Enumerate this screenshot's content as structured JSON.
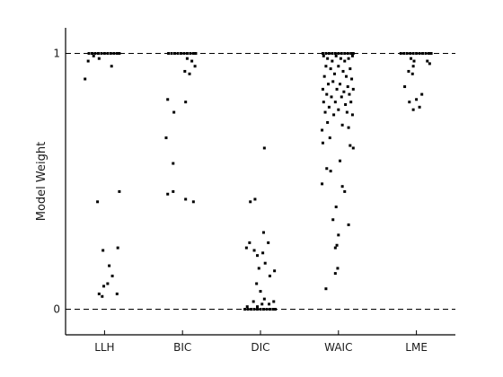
{
  "chart_data": {
    "type": "scatter",
    "title": "",
    "xlabel": "",
    "ylabel": "Model Weight",
    "categories": [
      "LLH",
      "BIC",
      "DIC",
      "WAIC",
      "LME"
    ],
    "xlim": [
      0.5,
      5.5
    ],
    "ylim": [
      -0.1,
      1.1
    ],
    "y_ticks": [
      0,
      1
    ],
    "reference_lines": [
      0,
      1
    ],
    "reference_line_style": "dashed",
    "marker_color": "#000000",
    "grid": false,
    "series": [
      {
        "category": "LLH",
        "points": [
          [
            0.8,
            1.0
          ],
          [
            0.84,
            1.0
          ],
          [
            0.88,
            1.0
          ],
          [
            0.92,
            1.0
          ],
          [
            0.96,
            1.0
          ],
          [
            1.0,
            1.0
          ],
          [
            1.04,
            1.0
          ],
          [
            1.08,
            1.0
          ],
          [
            1.12,
            1.0
          ],
          [
            1.16,
            1.0
          ],
          [
            1.19,
            1.0
          ],
          [
            0.86,
            0.99
          ],
          [
            0.93,
            0.98
          ],
          [
            0.79,
            0.97
          ],
          [
            1.09,
            0.95
          ],
          [
            0.75,
            0.9
          ],
          [
            1.19,
            0.46
          ],
          [
            0.91,
            0.42
          ],
          [
            0.98,
            0.23
          ],
          [
            1.17,
            0.24
          ],
          [
            1.06,
            0.17
          ],
          [
            1.1,
            0.13
          ],
          [
            1.04,
            0.1
          ],
          [
            0.99,
            0.09
          ],
          [
            0.93,
            0.06
          ],
          [
            0.97,
            0.05
          ],
          [
            1.16,
            0.06
          ]
        ]
      },
      {
        "category": "BIC",
        "points": [
          [
            1.82,
            1.0
          ],
          [
            1.86,
            1.0
          ],
          [
            1.9,
            1.0
          ],
          [
            1.94,
            1.0
          ],
          [
            1.98,
            1.0
          ],
          [
            2.02,
            1.0
          ],
          [
            2.06,
            1.0
          ],
          [
            2.1,
            1.0
          ],
          [
            2.14,
            1.0
          ],
          [
            2.17,
            1.0
          ],
          [
            2.06,
            0.98
          ],
          [
            2.12,
            0.97
          ],
          [
            2.16,
            0.95
          ],
          [
            2.03,
            0.93
          ],
          [
            2.09,
            0.92
          ],
          [
            1.81,
            0.82
          ],
          [
            2.04,
            0.81
          ],
          [
            1.89,
            0.77
          ],
          [
            1.79,
            0.67
          ],
          [
            1.88,
            0.57
          ],
          [
            1.81,
            0.45
          ],
          [
            1.88,
            0.46
          ],
          [
            2.04,
            0.43
          ],
          [
            2.14,
            0.42
          ]
        ]
      },
      {
        "category": "DIC",
        "points": [
          [
            2.8,
            0.0
          ],
          [
            2.84,
            0.0
          ],
          [
            2.88,
            0.0
          ],
          [
            2.92,
            0.0
          ],
          [
            2.96,
            0.0
          ],
          [
            3.0,
            0.0
          ],
          [
            3.04,
            0.0
          ],
          [
            3.08,
            0.0
          ],
          [
            3.12,
            0.0
          ],
          [
            3.16,
            0.0
          ],
          [
            3.19,
            0.0
          ],
          [
            2.83,
            0.01
          ],
          [
            2.96,
            0.01
          ],
          [
            3.02,
            0.02
          ],
          [
            3.11,
            0.02
          ],
          [
            3.17,
            0.03
          ],
          [
            3.05,
            0.04
          ],
          [
            2.91,
            0.03
          ],
          [
            3.0,
            0.07
          ],
          [
            2.95,
            0.1
          ],
          [
            3.12,
            0.13
          ],
          [
            2.98,
            0.16
          ],
          [
            3.18,
            0.15
          ],
          [
            3.06,
            0.18
          ],
          [
            2.96,
            0.21
          ],
          [
            3.03,
            0.22
          ],
          [
            2.92,
            0.23
          ],
          [
            3.1,
            0.26
          ],
          [
            2.82,
            0.24
          ],
          [
            2.86,
            0.26
          ],
          [
            3.04,
            0.3
          ],
          [
            2.87,
            0.42
          ],
          [
            2.93,
            0.43
          ],
          [
            3.05,
            0.63
          ]
        ]
      },
      {
        "category": "WAIC",
        "points": [
          [
            3.8,
            1.0
          ],
          [
            3.84,
            1.0
          ],
          [
            3.88,
            1.0
          ],
          [
            3.92,
            1.0
          ],
          [
            3.96,
            1.0
          ],
          [
            4.0,
            1.0
          ],
          [
            4.04,
            1.0
          ],
          [
            4.08,
            1.0
          ],
          [
            4.12,
            1.0
          ],
          [
            4.16,
            1.0
          ],
          [
            4.19,
            1.0
          ],
          [
            3.81,
            0.99
          ],
          [
            3.86,
            0.98
          ],
          [
            3.92,
            0.97
          ],
          [
            3.97,
            0.99
          ],
          [
            4.03,
            0.98
          ],
          [
            4.08,
            0.97
          ],
          [
            4.13,
            0.98
          ],
          [
            4.18,
            0.99
          ],
          [
            3.84,
            0.95
          ],
          [
            3.9,
            0.94
          ],
          [
            4.0,
            0.95
          ],
          [
            4.06,
            0.93
          ],
          [
            4.15,
            0.94
          ],
          [
            3.82,
            0.91
          ],
          [
            3.95,
            0.92
          ],
          [
            4.1,
            0.91
          ],
          [
            4.17,
            0.9
          ],
          [
            3.87,
            0.88
          ],
          [
            3.93,
            0.89
          ],
          [
            4.02,
            0.88
          ],
          [
            4.12,
            0.87
          ],
          [
            3.8,
            0.86
          ],
          [
            3.98,
            0.86
          ],
          [
            4.07,
            0.85
          ],
          [
            4.19,
            0.86
          ],
          [
            3.85,
            0.84
          ],
          [
            3.91,
            0.83
          ],
          [
            4.04,
            0.83
          ],
          [
            4.14,
            0.84
          ],
          [
            3.81,
            0.81
          ],
          [
            3.96,
            0.81
          ],
          [
            4.09,
            0.8
          ],
          [
            4.16,
            0.81
          ],
          [
            3.88,
            0.79
          ],
          [
            4.0,
            0.78
          ],
          [
            3.83,
            0.77
          ],
          [
            3.94,
            0.76
          ],
          [
            4.11,
            0.77
          ],
          [
            4.18,
            0.76
          ],
          [
            3.86,
            0.73
          ],
          [
            4.05,
            0.72
          ],
          [
            4.13,
            0.71
          ],
          [
            3.79,
            0.7
          ],
          [
            3.89,
            0.67
          ],
          [
            3.8,
            0.65
          ],
          [
            4.15,
            0.64
          ],
          [
            4.19,
            0.63
          ],
          [
            4.02,
            0.58
          ],
          [
            3.85,
            0.55
          ],
          [
            3.9,
            0.54
          ],
          [
            3.79,
            0.49
          ],
          [
            4.05,
            0.48
          ],
          [
            4.08,
            0.46
          ],
          [
            3.97,
            0.4
          ],
          [
            3.93,
            0.35
          ],
          [
            4.13,
            0.33
          ],
          [
            4.0,
            0.29
          ],
          [
            3.98,
            0.25
          ],
          [
            3.96,
            0.24
          ],
          [
            3.99,
            0.16
          ],
          [
            3.96,
            0.14
          ],
          [
            3.84,
            0.08
          ]
        ]
      },
      {
        "category": "LME",
        "points": [
          [
            4.8,
            1.0
          ],
          [
            4.84,
            1.0
          ],
          [
            4.88,
            1.0
          ],
          [
            4.92,
            1.0
          ],
          [
            4.96,
            1.0
          ],
          [
            5.0,
            1.0
          ],
          [
            5.04,
            1.0
          ],
          [
            5.08,
            1.0
          ],
          [
            5.12,
            1.0
          ],
          [
            5.16,
            1.0
          ],
          [
            5.19,
            1.0
          ],
          [
            4.93,
            0.98
          ],
          [
            4.97,
            0.97
          ],
          [
            5.14,
            0.97
          ],
          [
            5.17,
            0.96
          ],
          [
            4.96,
            0.95
          ],
          [
            4.9,
            0.93
          ],
          [
            4.95,
            0.92
          ],
          [
            4.85,
            0.87
          ],
          [
            5.0,
            0.82
          ],
          [
            5.07,
            0.84
          ],
          [
            4.91,
            0.81
          ],
          [
            5.04,
            0.79
          ],
          [
            4.96,
            0.78
          ]
        ]
      }
    ]
  }
}
